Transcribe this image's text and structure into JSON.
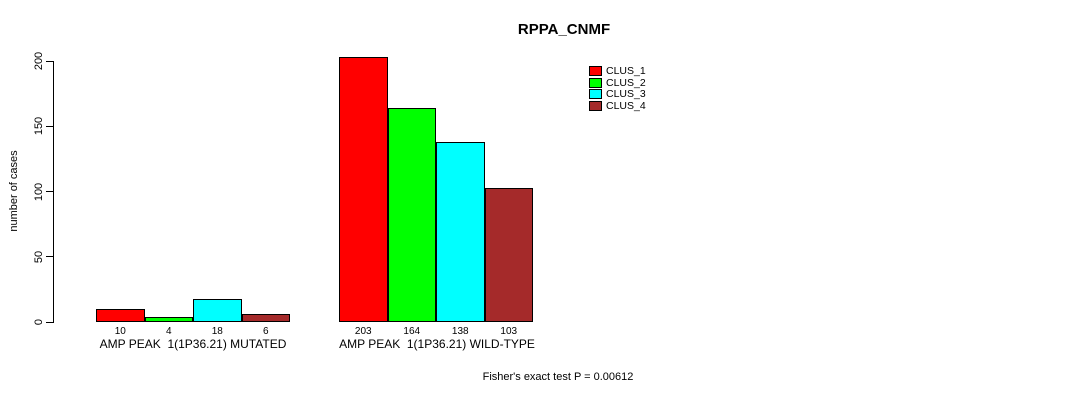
{
  "chart_data": {
    "type": "bar",
    "title": "RPPA_CNMF",
    "ylabel": "number of cases",
    "ylim": [
      0,
      200
    ],
    "yticks": [
      0,
      50,
      100,
      150,
      200
    ],
    "grid": false,
    "legend_position": "top-right",
    "categories": [
      "AMP PEAK  1(1P36.21) MUTATED",
      "AMP PEAK  1(1P36.21) WILD-TYPE"
    ],
    "series": [
      {
        "name": "CLUS_1",
        "color": "#FF0000",
        "values": [
          10,
          203
        ]
      },
      {
        "name": "CLUS_2",
        "color": "#00FF00",
        "values": [
          4,
          164
        ]
      },
      {
        "name": "CLUS_3",
        "color": "#00FFFF",
        "values": [
          18,
          138
        ]
      },
      {
        "name": "CLUS_4",
        "color": "#A52A2A",
        "values": [
          6,
          103
        ]
      }
    ],
    "groups": [
      {
        "label": "AMP PEAK  1(1P36.21) MUTATED",
        "values": [
          10,
          4,
          18,
          6
        ]
      },
      {
        "label": "AMP PEAK  1(1P36.21) WILD-TYPE",
        "values": [
          203,
          164,
          138,
          103
        ]
      }
    ],
    "bar_border_color": "#000000",
    "footnote": "Fisher's exact test P = 0.00612"
  }
}
